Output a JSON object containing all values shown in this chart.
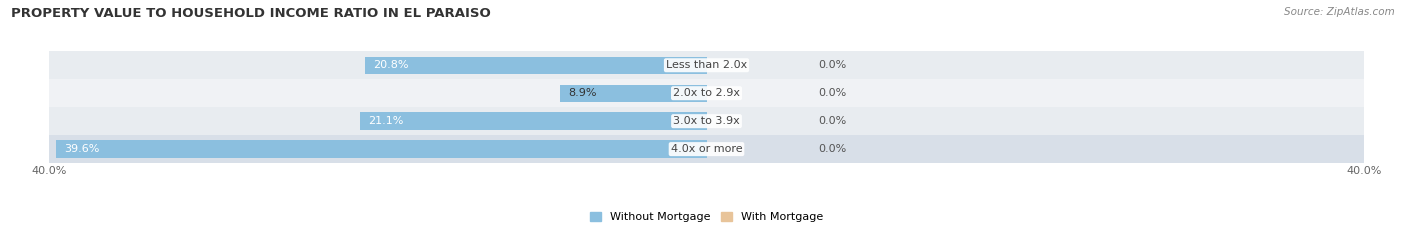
{
  "title": "PROPERTY VALUE TO HOUSEHOLD INCOME RATIO IN EL PARAISO",
  "source": "Source: ZipAtlas.com",
  "categories": [
    "Less than 2.0x",
    "2.0x to 2.9x",
    "3.0x to 3.9x",
    "4.0x or more"
  ],
  "without_mortgage": [
    20.8,
    8.9,
    21.1,
    39.6
  ],
  "with_mortgage": [
    0.0,
    0.0,
    0.0,
    0.0
  ],
  "xlim": [
    -40.0,
    40.0
  ],
  "color_without": "#8bbfdf",
  "color_with": "#e8c49a",
  "row_colors": [
    "#e8ecf0",
    "#f0f2f5",
    "#e8ecf0",
    "#d8dfe8"
  ],
  "bar_height": 0.62,
  "x_tick_left": -40.0,
  "x_tick_right": 40.0,
  "legend_without": "Without Mortgage",
  "legend_with": "With Mortgage",
  "title_fontsize": 9.5,
  "label_fontsize": 8,
  "tick_fontsize": 8,
  "value_fontsize": 8
}
